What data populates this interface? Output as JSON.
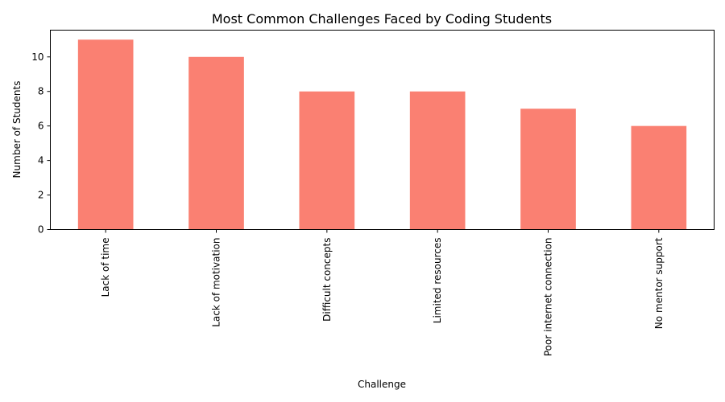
{
  "chart_data": {
    "type": "bar",
    "title": "Most Common Challenges Faced by Coding Students",
    "xlabel": "Challenge",
    "ylabel": "Number of Students",
    "categories": [
      "Lack of time",
      "Lack of motivation",
      "Difficult concepts",
      "Limited resources",
      "Poor internet connection",
      "No mentor support"
    ],
    "values": [
      11,
      10,
      8,
      8,
      7,
      6
    ],
    "ylim": [
      0,
      11.55
    ],
    "yticks": [
      0,
      2,
      4,
      6,
      8,
      10
    ],
    "bar_color": "#fa8072",
    "grid": false,
    "legend": "none"
  }
}
